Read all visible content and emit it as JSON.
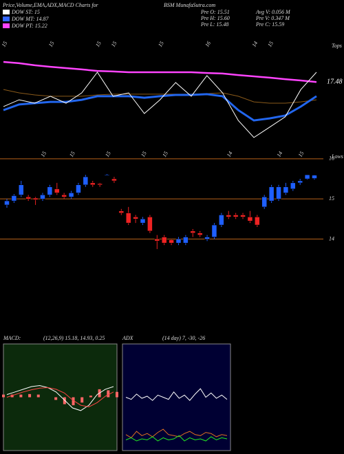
{
  "header": {
    "title": "Price,Volume,EMA,ADX,MACD Charts for",
    "site": "BSM MunafaSutra.com",
    "dow": [
      {
        "label": "DOW ST: 15",
        "color": "#ffffff"
      },
      {
        "label": "DOW MT: 14.87",
        "color": "#3366ff"
      },
      {
        "label": "DOW PT: 15.22",
        "color": "#ff44ff"
      }
    ],
    "stats": [
      "Pre O: 15.51",
      "Avg V: 0.056 M",
      "Pre H: 15.60",
      "Pre V: 0.347 M",
      "Pre L: 15.48",
      "Pre C: 15.59"
    ]
  },
  "chart_data": [
    {
      "type": "line",
      "label_top": "Tops",
      "price_label": "17.48",
      "ylim": [
        13.6,
        19.1
      ],
      "categories": [
        "15",
        null,
        null,
        "15",
        null,
        null,
        "15",
        "15",
        null,
        null,
        "15",
        null,
        null,
        "16",
        null,
        null,
        "14",
        "15",
        null,
        null,
        null
      ],
      "series": [
        {
          "name": null,
          "color": "#ff44ff",
          "width": 2.5,
          "values": [
            18.55,
            18.48,
            18.37,
            18.29,
            18.22,
            18.15,
            18.07,
            18.04,
            18.0,
            18.0,
            18.0,
            18.0,
            18.0,
            17.96,
            17.93,
            17.85,
            17.78,
            17.71,
            17.63,
            17.56,
            17.48
          ]
        },
        {
          "name": null,
          "color": "#8a5a1a",
          "width": 1,
          "values": [
            17.08,
            16.9,
            16.79,
            16.72,
            16.72,
            16.72,
            16.79,
            16.83,
            16.83,
            16.83,
            16.83,
            16.83,
            16.83,
            16.86,
            16.9,
            16.72,
            16.42,
            16.35,
            16.35,
            16.42,
            16.53
          ]
        },
        {
          "name": null,
          "color": "#2266ee",
          "width": 3,
          "values": [
            15.98,
            16.28,
            16.35,
            16.42,
            16.42,
            16.53,
            16.72,
            16.72,
            16.72,
            16.64,
            16.72,
            16.79,
            16.79,
            16.83,
            16.72,
            15.98,
            15.43,
            15.54,
            15.69,
            16.17,
            16.72
          ]
        },
        {
          "name": null,
          "color": "#ffffff",
          "width": 1,
          "values": [
            16.17,
            16.53,
            16.35,
            16.72,
            16.35,
            16.9,
            18.0,
            16.72,
            16.9,
            15.8,
            16.53,
            17.45,
            16.72,
            17.82,
            16.9,
            15.43,
            14.52,
            15.07,
            15.62,
            17.08,
            18.0
          ]
        }
      ]
    },
    {
      "type": "candlestick",
      "label_top": "Lows",
      "ylim": [
        13.7,
        16.1
      ],
      "yticks": [
        14,
        15,
        16
      ],
      "grid": true,
      "grid_color": "#b8621b",
      "up_color": "#1e5fff",
      "down_color": "#ee2222",
      "categories": [
        null,
        null,
        null,
        null,
        null,
        "15",
        null,
        null,
        null,
        "15",
        null,
        null,
        null,
        null,
        "15",
        null,
        null,
        null,
        null,
        "15",
        null,
        null,
        "15",
        null,
        null,
        null,
        null,
        null,
        null,
        null,
        null,
        "14",
        null,
        null,
        null,
        null,
        null,
        null,
        "14",
        null,
        null,
        "15",
        null,
        null
      ],
      "open": [
        14.85,
        14.95,
        15.1,
        15.05,
        15.02,
        15.0,
        15.1,
        15.25,
        15.1,
        15.05,
        15.15,
        15.35,
        15.4,
        15.38,
        15.6,
        15.5,
        14.7,
        14.65,
        14.55,
        14.4,
        14.55,
        14.0,
        14.05,
        13.98,
        13.9,
        13.9,
        14.2,
        14.15,
        14.0,
        14.05,
        14.35,
        14.6,
        14.6,
        14.6,
        14.55,
        14.55,
        14.8,
        14.95,
        15.0,
        15.15,
        15.25,
        15.4,
        15.5,
        15.51
      ],
      "high": [
        15.0,
        15.12,
        15.45,
        15.1,
        15.05,
        15.15,
        15.35,
        15.4,
        15.15,
        15.2,
        15.4,
        15.6,
        15.45,
        15.4,
        15.62,
        15.55,
        14.75,
        14.8,
        14.6,
        14.55,
        14.6,
        14.1,
        14.1,
        14.0,
        14.05,
        14.1,
        14.25,
        14.2,
        14.1,
        14.4,
        14.65,
        14.7,
        14.65,
        14.65,
        14.7,
        14.6,
        15.1,
        15.35,
        15.35,
        15.4,
        15.45,
        15.5,
        15.6,
        15.6
      ],
      "low": [
        14.78,
        14.9,
        15.05,
        14.95,
        14.85,
        14.95,
        15.05,
        15.1,
        15.0,
        15.0,
        15.1,
        15.3,
        15.3,
        15.3,
        15.58,
        15.4,
        14.6,
        14.35,
        14.4,
        14.35,
        14.15,
        13.75,
        13.85,
        13.85,
        13.85,
        13.85,
        14.05,
        14.05,
        13.95,
        14.0,
        14.3,
        14.5,
        14.5,
        14.5,
        14.4,
        14.3,
        14.75,
        14.9,
        14.95,
        15.1,
        15.2,
        15.35,
        15.48,
        15.48
      ],
      "close": [
        14.95,
        15.08,
        15.35,
        15.0,
        14.98,
        15.1,
        15.3,
        15.15,
        15.05,
        15.15,
        15.35,
        15.55,
        15.35,
        15.35,
        15.6,
        15.45,
        14.65,
        14.4,
        14.5,
        14.5,
        14.2,
        13.95,
        13.9,
        13.9,
        14.0,
        14.05,
        14.15,
        14.1,
        14.05,
        14.35,
        14.6,
        14.55,
        14.55,
        14.55,
        14.45,
        14.35,
        15.05,
        15.3,
        15.3,
        15.3,
        15.4,
        15.45,
        15.6,
        15.59
      ]
    },
    {
      "type": "macd",
      "label": "MACD:",
      "params": "(12,26,9) 15.18, 14.93, 0.25",
      "ylim": [
        -1,
        1
      ],
      "background": "#0c2a0c",
      "series": [
        {
          "name": null,
          "color": "#ffffff",
          "values": [
            0.05,
            0.1,
            0.15,
            0.2,
            0.22,
            0.18,
            0.1,
            -0.05,
            -0.2,
            -0.25,
            -0.15,
            0.05,
            0.15,
            0.2
          ]
        },
        {
          "name": null,
          "color": "#ff4444",
          "values": [
            0.0,
            0.05,
            0.1,
            0.14,
            0.17,
            0.18,
            0.15,
            0.08,
            -0.05,
            -0.15,
            -0.18,
            -0.1,
            0.02,
            0.1
          ]
        }
      ],
      "histogram": {
        "color": "#ff6666",
        "values": [
          0.05,
          0.05,
          0.05,
          0.06,
          0.05,
          0,
          -0.05,
          -0.13,
          -0.15,
          -0.1,
          0.03,
          0.15,
          0.13,
          0.1
        ]
      }
    },
    {
      "type": "adx",
      "label": "ADX",
      "params": "(14 day) 7, -30, -26",
      "ylim": [
        0,
        100
      ],
      "background": "#000033",
      "series": [
        {
          "name": null,
          "color": "#ffffff",
          "values": [
            50,
            48,
            53,
            49,
            51,
            47,
            52,
            50,
            48,
            55,
            49,
            52,
            47,
            53,
            58,
            50,
            54,
            49,
            52,
            48
          ]
        },
        {
          "name": null,
          "color": "#e07020",
          "values": [
            15,
            12,
            18,
            14,
            16,
            13,
            17,
            20,
            15,
            14,
            13,
            16,
            18,
            15,
            14,
            17,
            16,
            13,
            15,
            14
          ]
        },
        {
          "name": null,
          "color": "#22ee22",
          "values": [
            10,
            12,
            9,
            11,
            10,
            13,
            9,
            12,
            10,
            11,
            14,
            9,
            12,
            10,
            11,
            9,
            13,
            10,
            12,
            11
          ]
        }
      ]
    }
  ]
}
